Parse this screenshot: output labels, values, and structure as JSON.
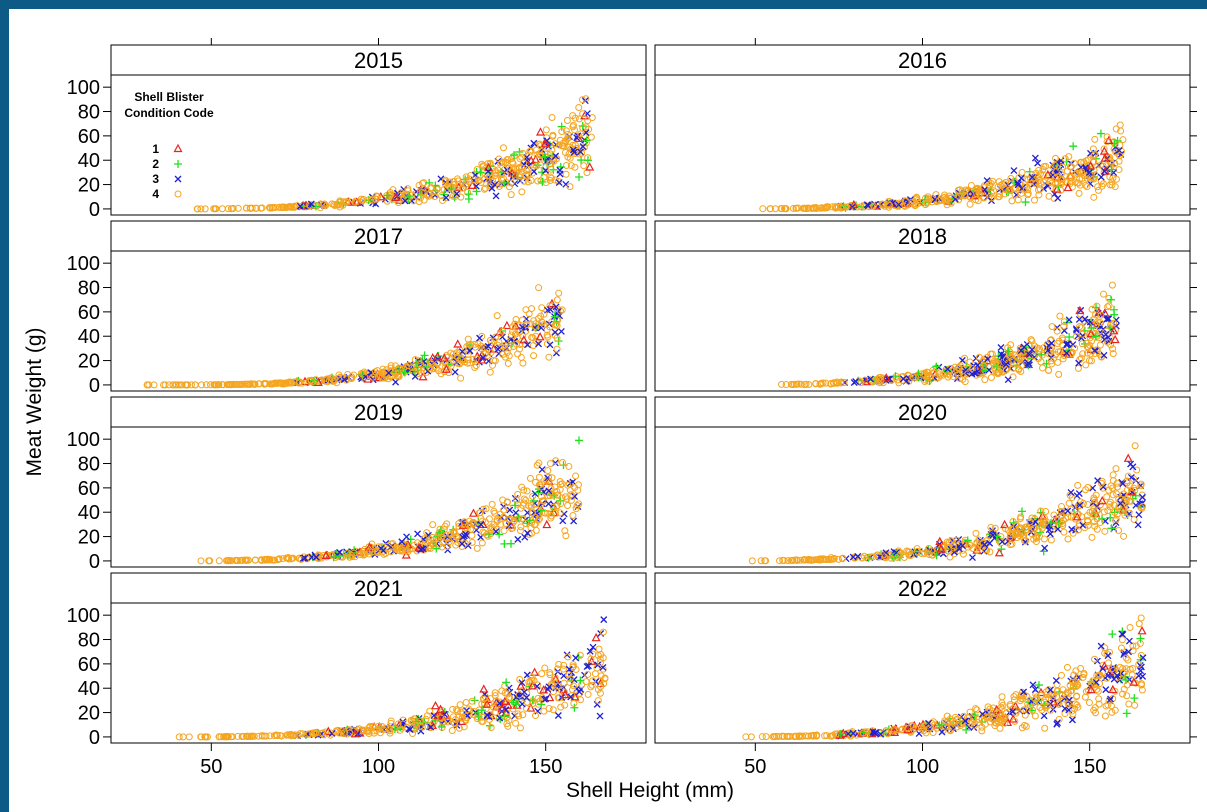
{
  "colors": {
    "background_border": "#0d5a86",
    "code1": "#e8241f",
    "code2": "#22e01f",
    "code3": "#1f1fd6",
    "code4": "#f5a51f"
  },
  "chart_data": {
    "type": "scatter",
    "layout": "faceted 2 columns x 4 rows",
    "xlabel": "Shell Height (mm)",
    "ylabel": "Meat Weight (g)",
    "xlim": [
      20,
      180
    ],
    "ylim": [
      -5,
      110
    ],
    "xticks": [
      50,
      100,
      150
    ],
    "yticks": [
      0,
      20,
      40,
      60,
      80,
      100
    ],
    "legend": {
      "title_line1": "Shell Blister",
      "title_line2": "Condition Code",
      "placement": "top-left of first panel",
      "entries": [
        {
          "code": "1",
          "symbol": "triangle",
          "color": "#e8241f"
        },
        {
          "code": "2",
          "symbol": "plus",
          "color": "#22e01f"
        },
        {
          "code": "3",
          "symbol": "cross",
          "color": "#1f1fd6"
        },
        {
          "code": "4",
          "symbol": "circle",
          "color": "#f5a51f"
        }
      ]
    },
    "panels": [
      {
        "label": "2015",
        "x_min": 42,
        "x_max": 164,
        "y_at_max": 60,
        "scatter": 0.28
      },
      {
        "label": "2016",
        "x_min": 50,
        "x_max": 160,
        "y_at_max": 45,
        "scatter": 0.3
      },
      {
        "label": "2017",
        "x_min": 26,
        "x_max": 155,
        "y_at_max": 55,
        "scatter": 0.25
      },
      {
        "label": "2018",
        "x_min": 55,
        "x_max": 158,
        "y_at_max": 50,
        "scatter": 0.3
      },
      {
        "label": "2019",
        "x_min": 45,
        "x_max": 160,
        "y_at_max": 62,
        "scatter": 0.28
      },
      {
        "label": "2020",
        "x_min": 48,
        "x_max": 166,
        "y_at_max": 62,
        "scatter": 0.28
      },
      {
        "label": "2021",
        "x_min": 38,
        "x_max": 168,
        "y_at_max": 58,
        "scatter": 0.3
      },
      {
        "label": "2022",
        "x_min": 46,
        "x_max": 166,
        "y_at_max": 62,
        "scatter": 0.3
      }
    ]
  }
}
